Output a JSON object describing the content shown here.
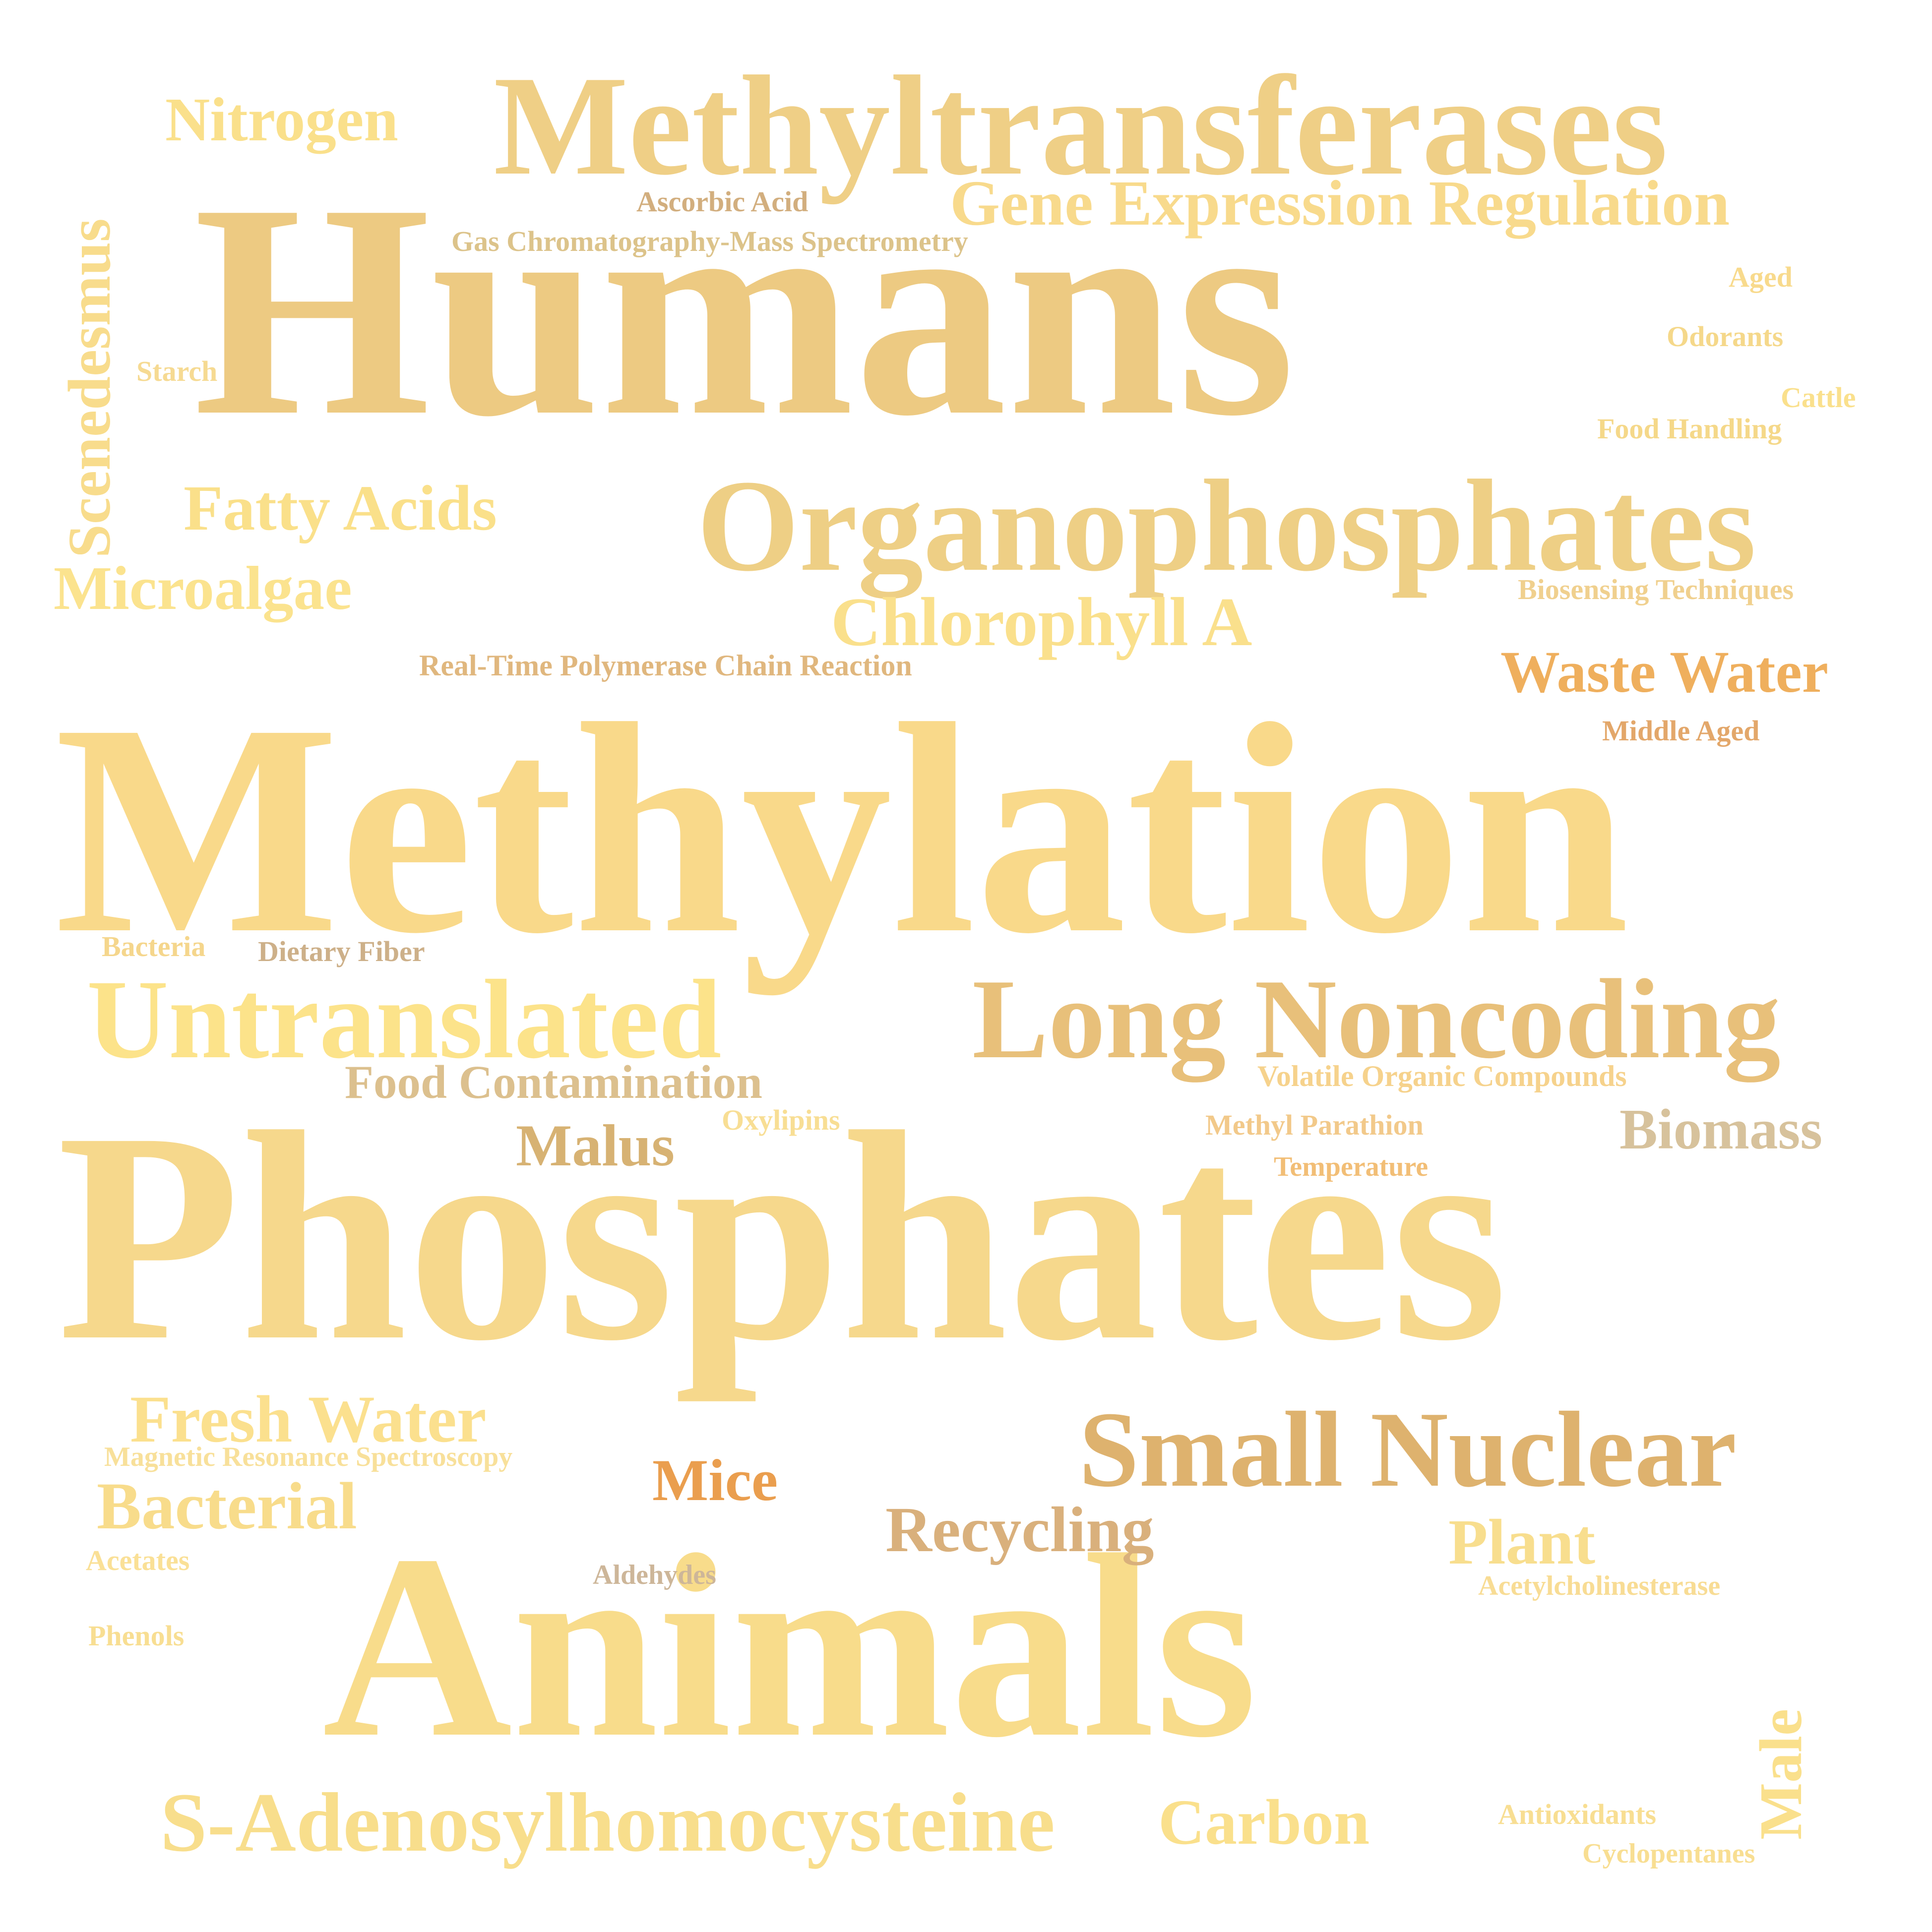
{
  "words": {
    "methylation": {
      "text": "Methylation",
      "color": "#F9D98A"
    },
    "phosphates": {
      "text": "Phosphates",
      "color": "#F6D88C"
    },
    "humans": {
      "text": "Humans",
      "color": "#EDCA82"
    },
    "animals": {
      "text": "Animals",
      "color": "#F8DC8B"
    },
    "methyltransferases": {
      "text": "Methyltransferases",
      "color": "#EFCF86"
    },
    "organophosphates": {
      "text": "Organophosphates",
      "color": "#EECF85"
    },
    "long_noncoding": {
      "text": "Long Noncoding",
      "color": "#E8C07A"
    },
    "untranslated": {
      "text": "Untranslated",
      "color": "#FCE38A"
    },
    "small_nuclear": {
      "text": "Small Nuclear",
      "color": "#DEB26E"
    },
    "s_adenosylhomocysteine": {
      "text": "S-Adenosylhomocysteine",
      "color": "#F8DE8C"
    },
    "gene_expression_regulation": {
      "text": "Gene Expression Regulation",
      "color": "#F8DA8C"
    },
    "chlorophyll_a": {
      "text": "Chlorophyll A",
      "color": "#FAE08C"
    },
    "fatty_acids": {
      "text": "Fatty Acids",
      "color": "#FAE08A"
    },
    "microalgae": {
      "text": "Microalgae",
      "color": "#FBE38E"
    },
    "nitrogen": {
      "text": "Nitrogen",
      "color": "#FAE08B"
    },
    "fresh_water": {
      "text": "Fresh Water",
      "color": "#FBE08E"
    },
    "bacterial": {
      "text": "Bacterial",
      "color": "#F8DC8B"
    },
    "carbon": {
      "text": "Carbon",
      "color": "#FAE08C"
    },
    "waste_water": {
      "text": "Waste Water",
      "color": "#EFAF5D"
    },
    "recycling": {
      "text": "Recycling",
      "color": "#D9B07C"
    },
    "plant": {
      "text": "Plant",
      "color": "#F8DE8E"
    },
    "biomass": {
      "text": "Biomass",
      "color": "#D7C29C"
    },
    "malus": {
      "text": "Malus",
      "color": "#D7B273"
    },
    "mice": {
      "text": "Mice",
      "color": "#EA9E4E"
    },
    "food_contamination": {
      "text": "Food Contamination",
      "color": "#DCC08E"
    },
    "scenedesmus": {
      "text": "Scenedesmus",
      "color": "#F8DC8C"
    },
    "male": {
      "text": "Male",
      "color": "#FAE08C"
    },
    "ascorbic_acid": {
      "text": "Ascorbic Acid",
      "color": "#D2AE7E"
    },
    "gcms": {
      "text": "Gas Chromatography-Mass Spectrometry",
      "color": "#DCC38A"
    },
    "aged": {
      "text": "Aged",
      "color": "#F8DA8C"
    },
    "odorants": {
      "text": "Odorants",
      "color": "#F5D88A"
    },
    "starch": {
      "text": "Starch",
      "color": "#F6DA92"
    },
    "cattle": {
      "text": "Cattle",
      "color": "#FAE08C"
    },
    "food_handling": {
      "text": "Food Handling",
      "color": "#F5D889"
    },
    "biosensing_techniques": {
      "text": "Biosensing Techniques",
      "color": "#F0D08E"
    },
    "rt_pcr": {
      "text": "Real-Time Polymerase Chain Reaction",
      "color": "#E0B77E"
    },
    "middle_aged": {
      "text": "Middle Aged",
      "color": "#E3A76A"
    },
    "bacteria": {
      "text": "Bacteria",
      "color": "#F5D68C"
    },
    "dietary_fiber": {
      "text": "Dietary Fiber",
      "color": "#CDB089"
    },
    "voc": {
      "text": "Volatile Organic Compounds",
      "color": "#F6D28C"
    },
    "oxylipins": {
      "text": "Oxylipins",
      "color": "#F8DE94"
    },
    "methyl_parathion": {
      "text": "Methyl Parathion",
      "color": "#F2C98A"
    },
    "temperature": {
      "text": "Temperature",
      "color": "#F2BE76"
    },
    "mrs": {
      "text": "Magnetic Resonance Spectroscopy",
      "color": "#F8E09A"
    },
    "acetates": {
      "text": "Acetates",
      "color": "#FAE096"
    },
    "aldehydes": {
      "text": "Aldehydes",
      "color": "#CDB699"
    },
    "acetylcholinesterase": {
      "text": "Acetylcholinesterase",
      "color": "#F8DC94"
    },
    "phenols": {
      "text": "Phenols",
      "color": "#F8DE92"
    },
    "antioxidants": {
      "text": "Antioxidants",
      "color": "#F8DE92"
    },
    "cyclopentanes": {
      "text": "Cyclopentanes",
      "color": "#F8DE92"
    }
  }
}
